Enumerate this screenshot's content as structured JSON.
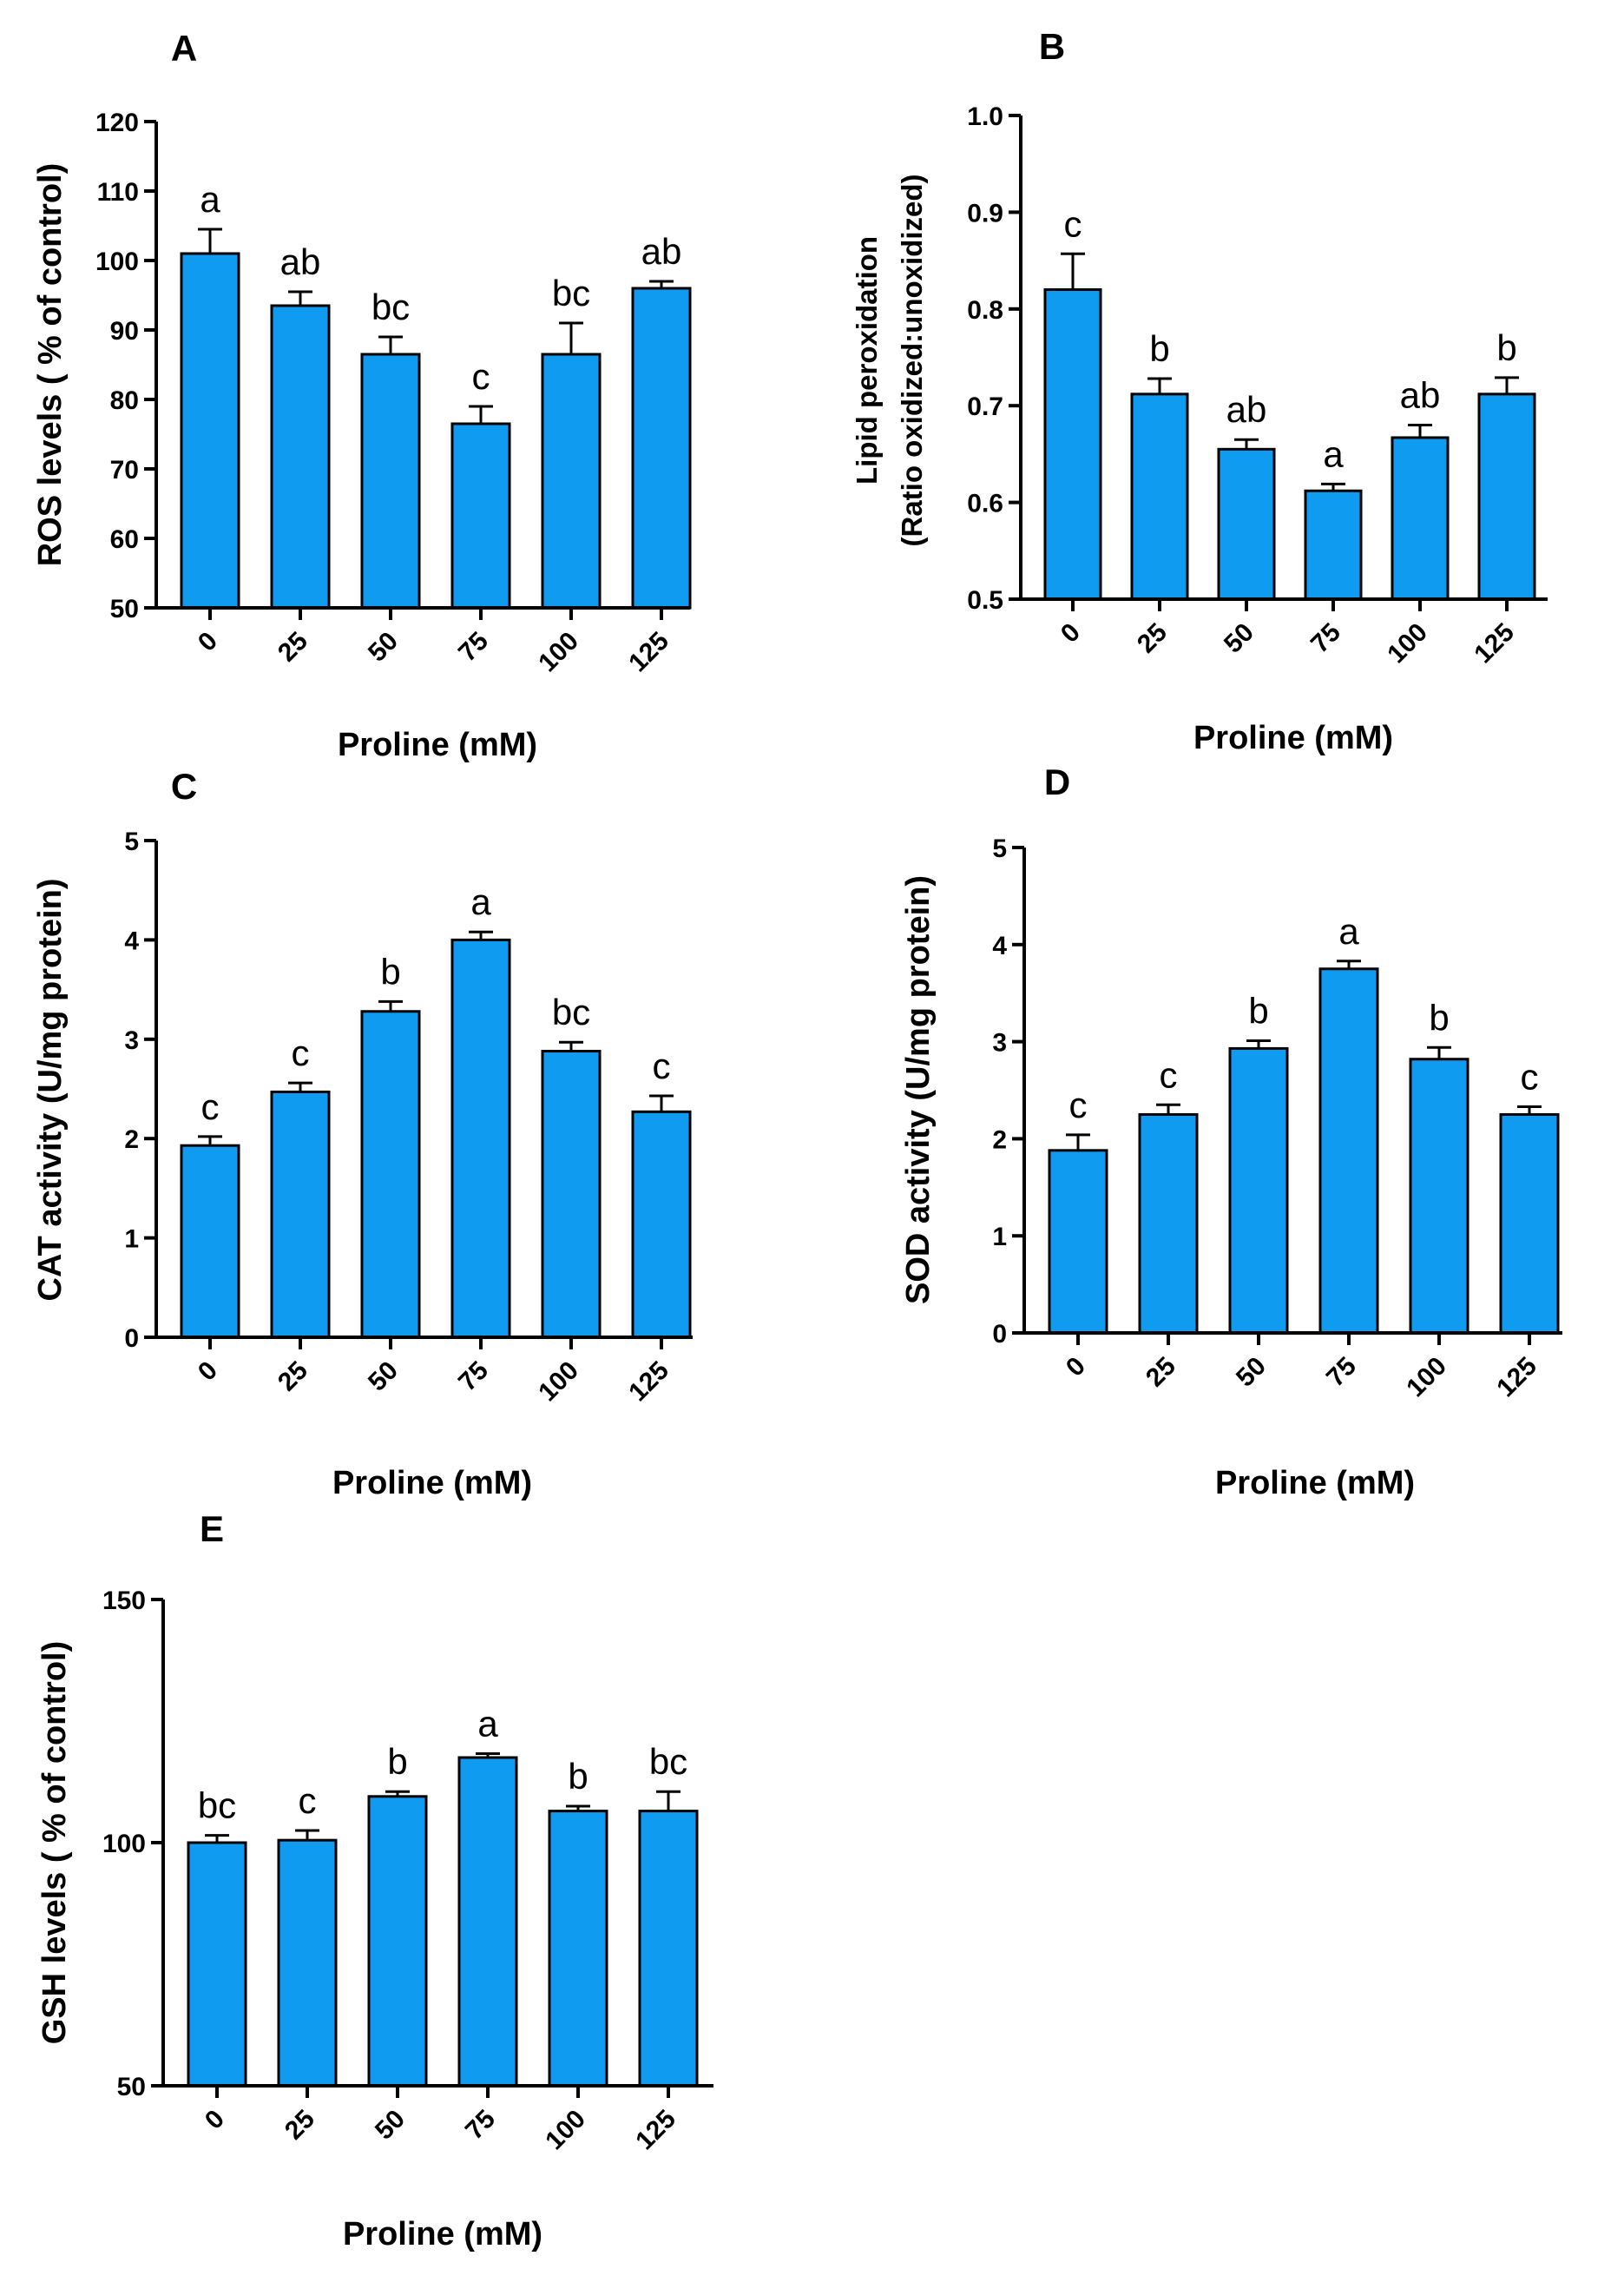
{
  "figure": {
    "background": "#ffffff",
    "bar_color": "#0f9bf0",
    "stroke_color": "#000000"
  },
  "chart_data": [
    {
      "type": "bar",
      "panel": "A",
      "title": "",
      "xlabel": "Proline (mM)",
      "ylabel": "ROS levels ( % of control)",
      "categories": [
        "0",
        "25",
        "50",
        "75",
        "100",
        "125"
      ],
      "values": [
        101,
        93.5,
        86.5,
        76.5,
        86.5,
        96
      ],
      "errors": [
        3.5,
        2,
        2.5,
        2.5,
        4.5,
        1
      ],
      "significance": [
        "a",
        "ab",
        "bc",
        "c",
        "bc",
        "ab"
      ],
      "ylim": [
        50,
        120
      ],
      "yticks": [
        "50",
        "60",
        "70",
        "80",
        "90",
        "100",
        "110",
        "120"
      ],
      "grid": false,
      "legend": "none"
    },
    {
      "type": "bar",
      "panel": "B",
      "title": "",
      "xlabel": "Proline (mM)",
      "ylabel": [
        "Lipid peroxidation",
        "(Ratio oxidized:unoxidized)"
      ],
      "categories": [
        "0",
        "25",
        "50",
        "75",
        "100",
        "125"
      ],
      "values": [
        0.82,
        0.712,
        0.655,
        0.612,
        0.667,
        0.712
      ],
      "errors": [
        0.037,
        0.016,
        0.01,
        0.007,
        0.013,
        0.017
      ],
      "significance": [
        "c",
        "b",
        "ab",
        "a",
        "ab",
        "b"
      ],
      "ylim": [
        0.5,
        1.0
      ],
      "yticks": [
        "0.5",
        "0.6",
        "0.7",
        "0.8",
        "0.9",
        "1.0"
      ],
      "grid": false,
      "legend": "none"
    },
    {
      "type": "bar",
      "panel": "C",
      "title": "",
      "xlabel": "Proline (mM)",
      "ylabel": "CAT activity (U/mg protein)",
      "categories": [
        "0",
        "25",
        "50",
        "75",
        "100",
        "125"
      ],
      "values": [
        1.93,
        2.47,
        3.28,
        4.0,
        2.88,
        2.27
      ],
      "errors": [
        0.09,
        0.09,
        0.1,
        0.08,
        0.09,
        0.16
      ],
      "significance": [
        "c",
        "c",
        "b",
        "a",
        "bc",
        "c"
      ],
      "ylim": [
        0,
        5
      ],
      "yticks": [
        "0",
        "1",
        "2",
        "3",
        "4",
        "5"
      ],
      "grid": false,
      "legend": "none"
    },
    {
      "type": "bar",
      "panel": "D",
      "title": "",
      "xlabel": "Proline (mM)",
      "ylabel": "SOD activity (U/mg protein)",
      "categories": [
        "0",
        "25",
        "50",
        "75",
        "100",
        "125"
      ],
      "values": [
        1.88,
        2.25,
        2.93,
        3.75,
        2.82,
        2.25
      ],
      "errors": [
        0.16,
        0.1,
        0.08,
        0.08,
        0.12,
        0.08
      ],
      "significance": [
        "c",
        "c",
        "b",
        "a",
        "b",
        "c"
      ],
      "ylim": [
        0,
        5
      ],
      "yticks": [
        "0",
        "1",
        "2",
        "3",
        "4",
        "5"
      ],
      "grid": false,
      "legend": "none"
    },
    {
      "type": "bar",
      "panel": "E",
      "title": "",
      "xlabel": "Proline (mM)",
      "ylabel": "GSH levels ( % of control)",
      "categories": [
        "0",
        "25",
        "50",
        "75",
        "100",
        "125"
      ],
      "values": [
        100,
        100.5,
        109.5,
        117.5,
        106.5,
        106.5
      ],
      "errors": [
        1.5,
        2,
        1,
        0.8,
        1,
        4
      ],
      "significance": [
        "bc",
        "c",
        "b",
        "a",
        "b",
        "bc"
      ],
      "ylim": [
        50,
        150
      ],
      "yticks": [
        "50",
        "100",
        "150"
      ],
      "grid": false,
      "legend": "none"
    }
  ]
}
